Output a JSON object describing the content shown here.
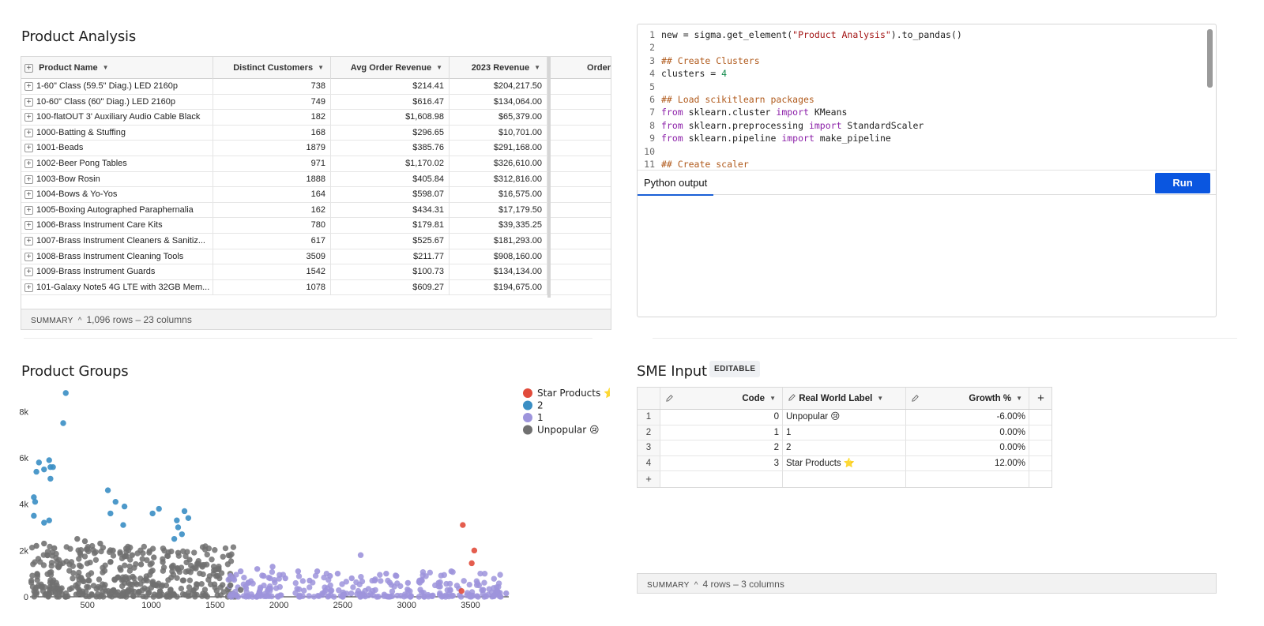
{
  "product_analysis": {
    "title": "Product Analysis",
    "columns": [
      "Product Name",
      "Distinct Customers",
      "Avg Order Revenue",
      "2023 Revenue",
      "Order"
    ],
    "rows": [
      {
        "name": "1-60\" Class (59.5\" Diag.)   LED   2160p",
        "customers": "738",
        "avg": "$214.41",
        "rev": "$204,217.50"
      },
      {
        "name": "10-60\" Class (60\" Diag.)   LED   2160p",
        "customers": "749",
        "avg": "$616.47",
        "rev": "$134,064.00"
      },
      {
        "name": "100-flatOUT 3' Auxiliary Audio Cable   Black",
        "customers": "182",
        "avg": "$1,608.98",
        "rev": "$65,379.00"
      },
      {
        "name": "1000-Batting & Stuffing",
        "customers": "168",
        "avg": "$296.65",
        "rev": "$10,701.00"
      },
      {
        "name": "1001-Beads",
        "customers": "1879",
        "avg": "$385.76",
        "rev": "$291,168.00"
      },
      {
        "name": "1002-Beer Pong Tables",
        "customers": "971",
        "avg": "$1,170.02",
        "rev": "$326,610.00"
      },
      {
        "name": "1003-Bow Rosin",
        "customers": "1888",
        "avg": "$405.84",
        "rev": "$312,816.00"
      },
      {
        "name": "1004-Bows & Yo-Yos",
        "customers": "164",
        "avg": "$598.07",
        "rev": "$16,575.00"
      },
      {
        "name": "1005-Boxing Autographed Paraphernalia",
        "customers": "162",
        "avg": "$434.31",
        "rev": "$17,179.50"
      },
      {
        "name": "1006-Brass Instrument Care Kits",
        "customers": "780",
        "avg": "$179.81",
        "rev": "$39,335.25"
      },
      {
        "name": "1007-Brass Instrument Cleaners & Sanitiz...",
        "customers": "617",
        "avg": "$525.67",
        "rev": "$181,293.00"
      },
      {
        "name": "1008-Brass Instrument Cleaning Tools",
        "customers": "3509",
        "avg": "$211.77",
        "rev": "$908,160.00"
      },
      {
        "name": "1009-Brass Instrument Guards",
        "customers": "1542",
        "avg": "$100.73",
        "rev": "$134,134.00"
      },
      {
        "name": "101-Galaxy Note5 4G LTE with 32GB Mem...",
        "customers": "1078",
        "avg": "$609.27",
        "rev": "$194,675.00"
      }
    ],
    "summary_label": "SUMMARY",
    "summary_text": "1,096 rows – 23 columns"
  },
  "python": {
    "code_lines": [
      "new = sigma.get_element(\"Product Analysis\").to_pandas()",
      "",
      "## Create Clusters",
      "clusters = 4",
      "",
      "## Load scikitlearn packages",
      "from sklearn.cluster import KMeans",
      "from sklearn.preprocessing import StandardScaler",
      "from sklearn.pipeline import make_pipeline",
      "",
      "## Create scaler"
    ],
    "line_numbers": [
      "1",
      "2",
      "3",
      "4",
      "5",
      "6",
      "7",
      "8",
      "9",
      "10",
      "11"
    ],
    "output_tab": "Python output",
    "run_label": "Run"
  },
  "product_groups": {
    "title": "Product Groups",
    "legend": [
      {
        "label": "Star Products ⭐",
        "color": "#e14b3b"
      },
      {
        "label": "2",
        "color": "#3a8ec4"
      },
      {
        "label": "1",
        "color": "#9d94dc"
      },
      {
        "label": "Unpopular 😢",
        "color": "#707070"
      }
    ]
  },
  "chart_data": {
    "type": "scatter",
    "title": "Product Groups",
    "xlabel": "",
    "ylabel": "",
    "xlim": [
      50,
      3800
    ],
    "ylim": [
      0,
      9000
    ],
    "xticks": [
      "500",
      "1000",
      "1500",
      "2000",
      "2500",
      "3000",
      "3500"
    ],
    "yticks": [
      "0",
      "2k",
      "4k",
      "6k",
      "8k"
    ],
    "legend_position": "top-right",
    "series": [
      {
        "name": "Star Products ⭐",
        "color": "#e14b3b",
        "points": [
          [
            3440,
            3100
          ],
          [
            3530,
            2000
          ],
          [
            3510,
            1450
          ],
          [
            3430,
            250
          ]
        ]
      },
      {
        "name": "2",
        "color": "#3a8ec4",
        "points": [
          [
            330,
            8800
          ],
          [
            310,
            7500
          ],
          [
            120,
            5800
          ],
          [
            200,
            5900
          ],
          [
            210,
            5600
          ],
          [
            160,
            5500
          ],
          [
            100,
            5400
          ],
          [
            230,
            5600
          ],
          [
            210,
            5100
          ],
          [
            80,
            4300
          ],
          [
            90,
            4100
          ],
          [
            660,
            4600
          ],
          [
            720,
            4100
          ],
          [
            790,
            3900
          ],
          [
            680,
            3600
          ],
          [
            1010,
            3600
          ],
          [
            1060,
            3800
          ],
          [
            1260,
            3700
          ],
          [
            1290,
            3400
          ],
          [
            1200,
            3300
          ],
          [
            1210,
            3000
          ],
          [
            1240,
            2700
          ],
          [
            1180,
            2500
          ],
          [
            80,
            3500
          ],
          [
            160,
            3200
          ],
          [
            200,
            3300
          ],
          [
            780,
            3100
          ]
        ]
      },
      {
        "name": "1",
        "color": "#9d94dc",
        "points": [
          [
            1620,
            900
          ],
          [
            1700,
            1100
          ],
          [
            1760,
            600
          ],
          [
            1830,
            1200
          ],
          [
            1880,
            900
          ],
          [
            1950,
            1300
          ],
          [
            2050,
            800
          ],
          [
            2150,
            1100
          ],
          [
            2240,
            700
          ],
          [
            2300,
            1100
          ],
          [
            2400,
            900
          ],
          [
            2460,
            1000
          ],
          [
            2570,
            800
          ],
          [
            2640,
            1800
          ],
          [
            2750,
            700
          ],
          [
            2840,
            1000
          ],
          [
            2920,
            900
          ],
          [
            3010,
            600
          ],
          [
            3120,
            700
          ],
          [
            3250,
            600
          ],
          [
            3350,
            1100
          ],
          [
            3600,
            300
          ],
          [
            3700,
            200
          ],
          [
            3780,
            150
          ]
        ]
      },
      {
        "name": "Unpopular 😢",
        "color": "#707070",
        "points": [
          [
            100,
            2200
          ],
          [
            160,
            2300
          ],
          [
            240,
            2100
          ],
          [
            420,
            2500
          ],
          [
            480,
            2400
          ],
          [
            600,
            2300
          ],
          [
            700,
            2000
          ],
          [
            850,
            1800
          ],
          [
            920,
            1400
          ],
          [
            1020,
            1700
          ],
          [
            1090,
            1500
          ],
          [
            1210,
            1900
          ],
          [
            1300,
            1600
          ],
          [
            1400,
            1300
          ],
          [
            1520,
            900
          ],
          [
            1620,
            500
          ],
          [
            1700,
            300
          ]
        ]
      }
    ]
  },
  "sme": {
    "title": "SME Input",
    "badge": "EDITABLE",
    "columns": [
      "Code",
      "Real World Label",
      "Growth %"
    ],
    "rows": [
      {
        "idx": "1",
        "code": "0",
        "label": "Unpopular 😢",
        "growth": "-6.00%"
      },
      {
        "idx": "2",
        "code": "1",
        "label": "1",
        "growth": "0.00%"
      },
      {
        "idx": "3",
        "code": "2",
        "label": "2",
        "growth": "0.00%"
      },
      {
        "idx": "4",
        "code": "3",
        "label": "Star Products ⭐",
        "growth": "12.00%"
      }
    ],
    "add_row": "+",
    "add_col": "+",
    "summary_label": "SUMMARY",
    "summary_text": "4 rows – 3 columns"
  }
}
